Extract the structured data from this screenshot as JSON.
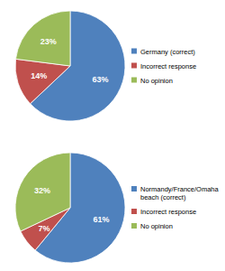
{
  "chart_data": [
    {
      "type": "pie",
      "categories": [
        "Germany (correct)",
        "Incorrect response",
        "No opinion"
      ],
      "values": [
        63,
        14,
        23
      ],
      "value_labels": [
        "63%",
        "14%",
        "23%"
      ],
      "colors": [
        "#4f81bd",
        "#c0504d",
        "#9bbb59"
      ],
      "data_labels": true,
      "legend": "right"
    },
    {
      "type": "pie",
      "categories": [
        "Normandy/France/Omaha beach (correct)",
        "Incorrect response",
        "No opinion"
      ],
      "values": [
        61,
        7,
        32
      ],
      "value_labels": [
        "61%",
        "7%",
        "32%"
      ],
      "colors": [
        "#4f81bd",
        "#c0504d",
        "#9bbb59"
      ],
      "data_labels": true,
      "legend": "right"
    }
  ]
}
